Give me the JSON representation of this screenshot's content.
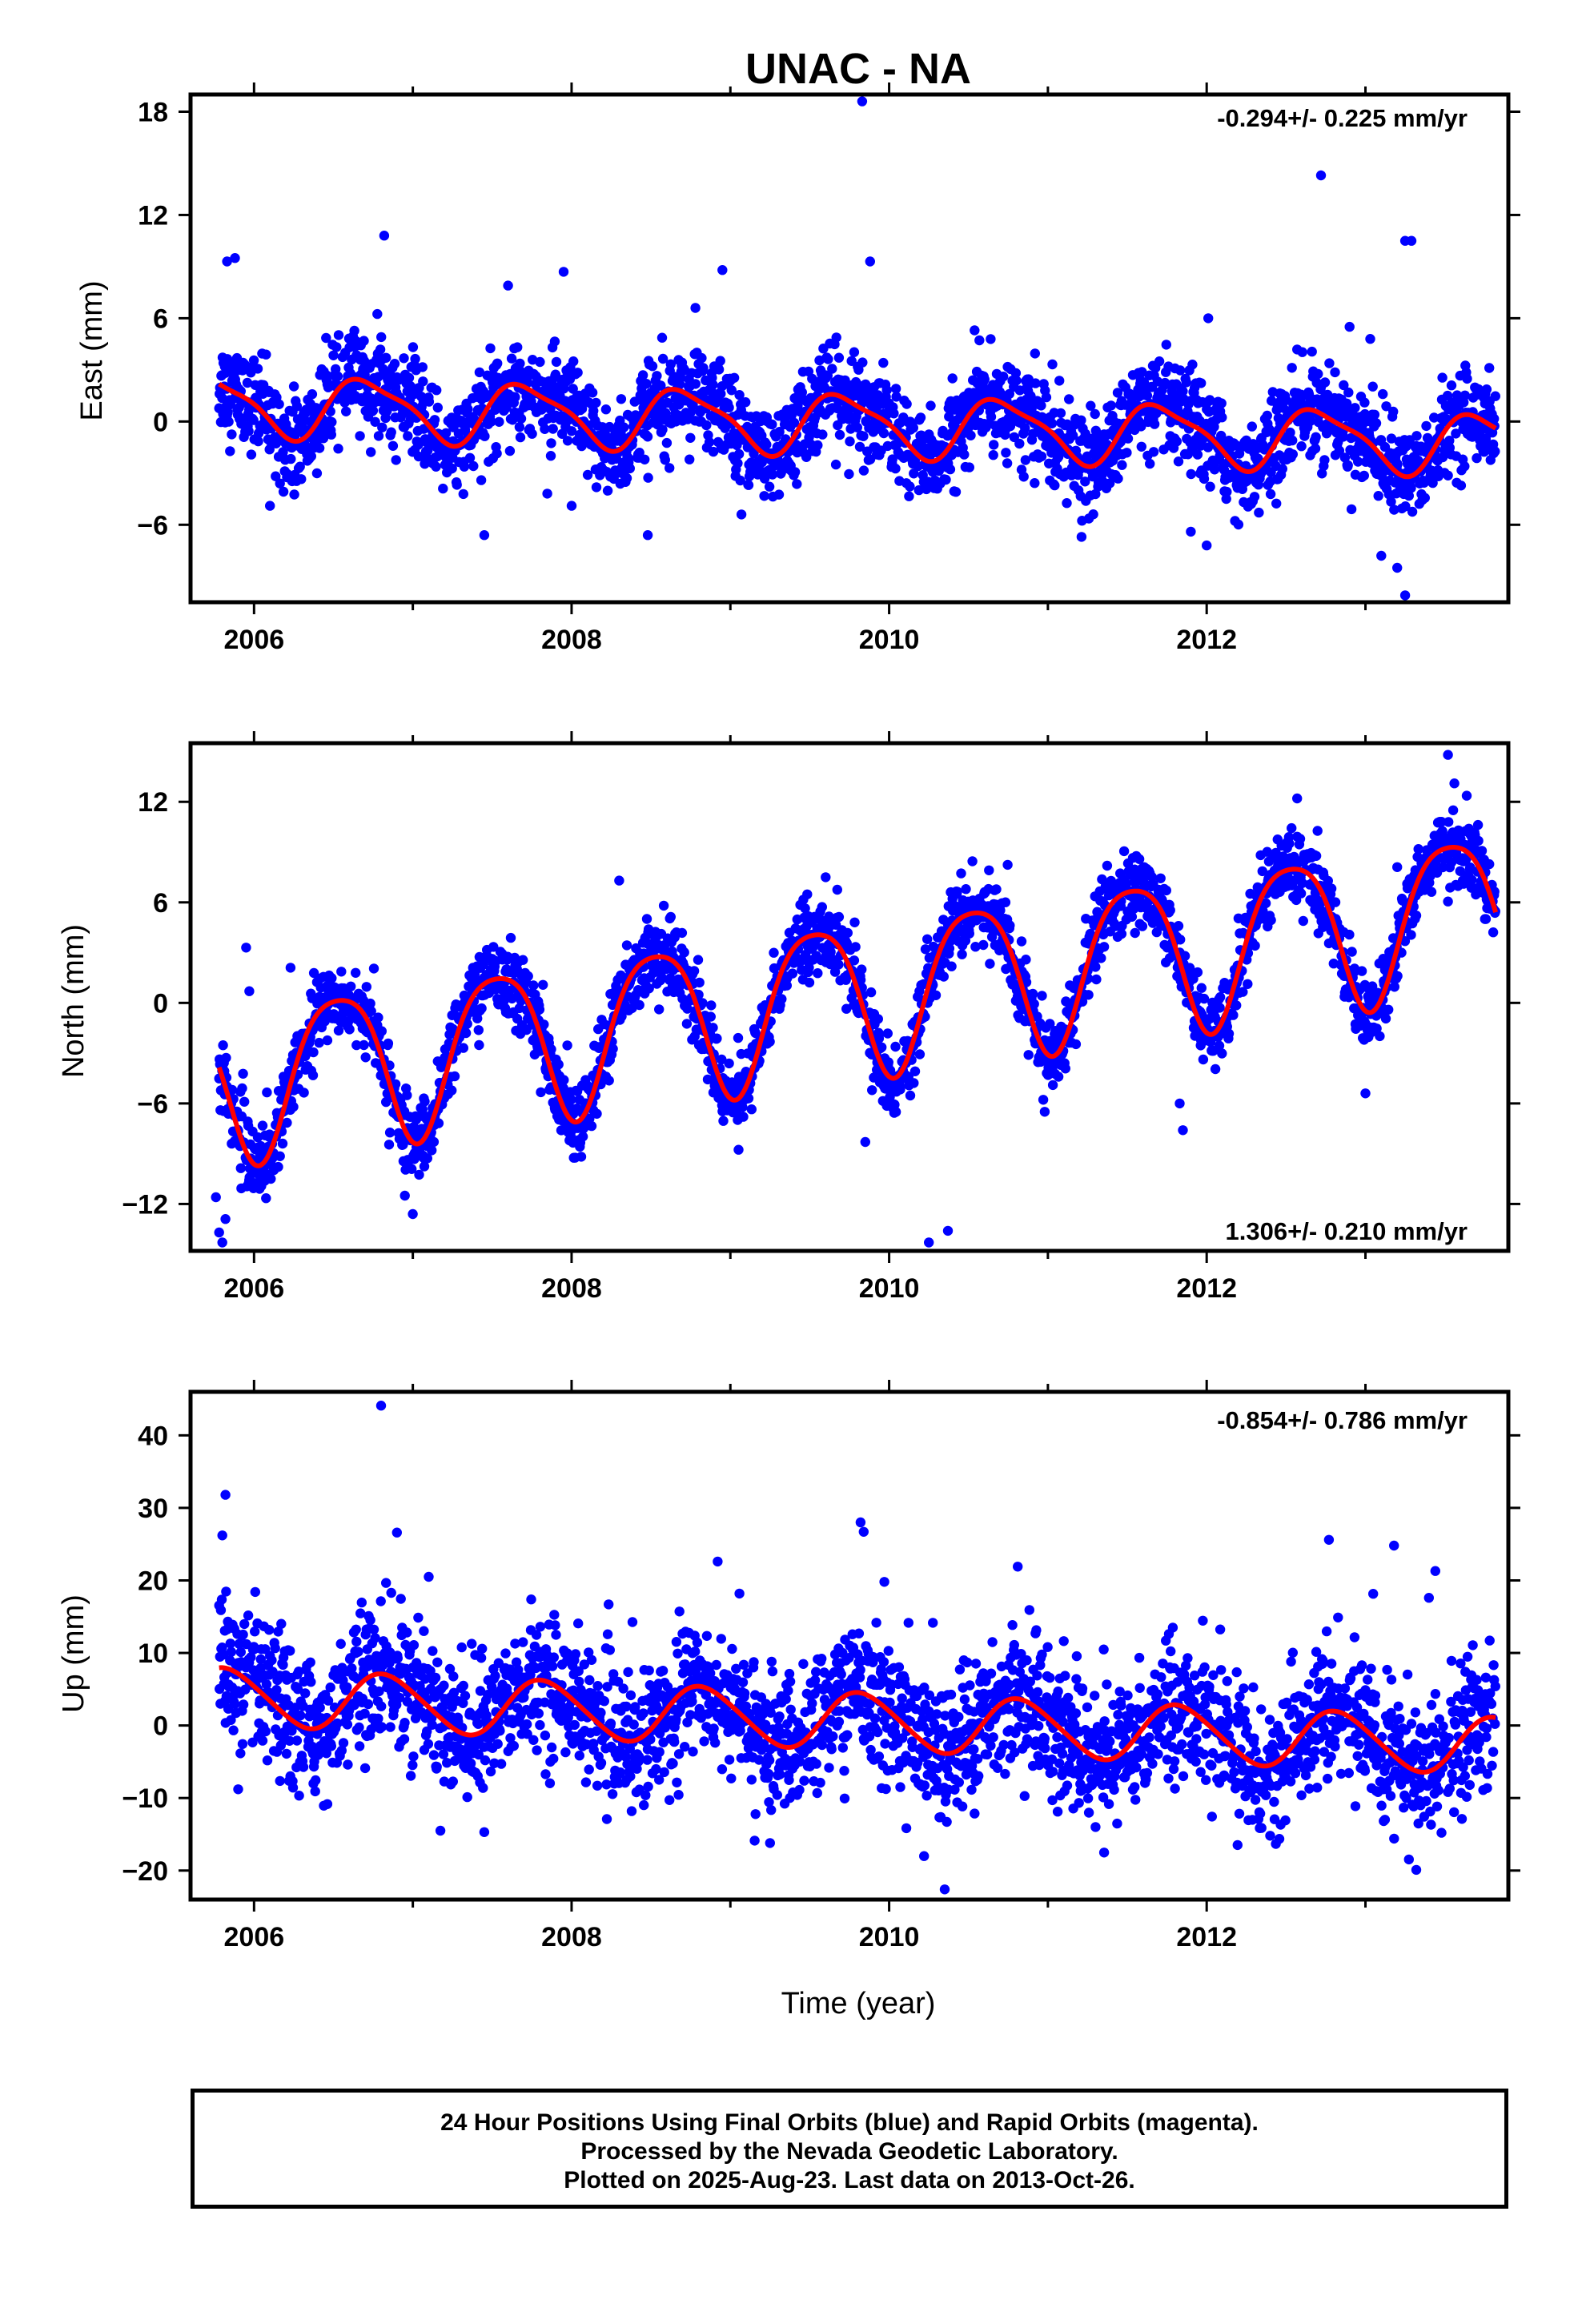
{
  "figure": {
    "title": "UNAC - NA",
    "xlabel": "Time (year)",
    "footer_lines": [
      "24 Hour Positions Using Final Orbits (blue) and Rapid Orbits (magenta).",
      "Processed by the Nevada Geodetic Laboratory.",
      "Plotted on 2025-Aug-23. Last data on 2013-Oct-26."
    ],
    "colors": {
      "points": "#0000ff",
      "fit": "#ff0000",
      "frame": "#000000"
    }
  },
  "chart_data": [
    {
      "type": "scatter",
      "name": "east",
      "ylabel": "East (mm)",
      "rate_text": "-0.294+/- 0.225 mm/yr",
      "rate_position": "top-right",
      "xlim": [
        2005.6,
        2013.9
      ],
      "ylim": [
        -10.5,
        19
      ],
      "xticks": [
        2006,
        2008,
        2010,
        2012
      ],
      "xtick_labels": [
        "2006",
        "2008",
        "2010",
        "2012"
      ],
      "yticks": [
        -6,
        0,
        6,
        12,
        18
      ],
      "ytick_labels": [
        "−6",
        "0",
        "6",
        "12",
        "18"
      ],
      "grid": false,
      "model": {
        "offset": -0.15,
        "rate": -0.294,
        "ref_year": 2009.8,
        "annual_amp": 1.7,
        "annual_phase_year": 0.72,
        "semiannual_amp": 0.45,
        "semiannual_phase_year": 0.05,
        "scatter_sd": 1.35
      },
      "outliers": [
        [
          2009.83,
          18.6
        ],
        [
          2012.72,
          14.3
        ],
        [
          2006.82,
          10.8
        ],
        [
          2013.25,
          10.5
        ],
        [
          2013.29,
          10.5
        ],
        [
          2005.88,
          9.5
        ],
        [
          2005.83,
          9.3
        ],
        [
          2009.88,
          9.3
        ],
        [
          2008.95,
          8.8
        ],
        [
          2007.95,
          8.7
        ],
        [
          2008.78,
          6.6
        ],
        [
          2012.01,
          6.0
        ],
        [
          2007.6,
          7.9
        ],
        [
          2012.9,
          5.5
        ],
        [
          2013.03,
          4.8
        ],
        [
          2007.45,
          -6.6
        ],
        [
          2008.48,
          -6.6
        ],
        [
          2012.0,
          -7.2
        ],
        [
          2013.1,
          -7.8
        ],
        [
          2013.2,
          -8.5
        ],
        [
          2013.25,
          -10.1
        ],
        [
          2006.1,
          -4.9
        ],
        [
          2011.9,
          -6.4
        ],
        [
          2008.0,
          -4.9
        ],
        [
          2009.07,
          -5.4
        ]
      ]
    },
    {
      "type": "scatter",
      "name": "north",
      "ylabel": "North (mm)",
      "rate_text": "1.306+/- 0.210 mm/yr",
      "rate_position": "bottom-right",
      "xlim": [
        2005.6,
        2013.9
      ],
      "ylim": [
        -14.8,
        15.5
      ],
      "xticks": [
        2006,
        2008,
        2010,
        2012
      ],
      "xtick_labels": [
        "2006",
        "2008",
        "2010",
        "2012"
      ],
      "yticks": [
        -12,
        -6,
        0,
        6,
        12
      ],
      "ytick_labels": [
        "−12",
        "−6",
        "0",
        "6",
        "12"
      ],
      "grid": false,
      "model": {
        "offset": 0.6,
        "rate": 1.306,
        "ref_year": 2009.8,
        "annual_amp": 4.6,
        "annual_phase_year": 0.53,
        "semiannual_amp": 0.8,
        "semiannual_phase_year": 0.28,
        "scatter_sd": 1.1
      },
      "outliers": [
        [
          2005.78,
          -13.7
        ],
        [
          2005.8,
          -14.3
        ],
        [
          2005.82,
          -12.9
        ],
        [
          2005.76,
          -11.6
        ],
        [
          2005.95,
          3.3
        ],
        [
          2005.97,
          0.7
        ],
        [
          2006.23,
          2.1
        ],
        [
          2007.0,
          -12.6
        ],
        [
          2006.95,
          -11.5
        ],
        [
          2008.3,
          7.3
        ],
        [
          2009.85,
          -8.3
        ],
        [
          2010.25,
          -14.3
        ],
        [
          2010.37,
          -13.6
        ],
        [
          2010.98,
          -6.5
        ],
        [
          2011.83,
          -6.0
        ],
        [
          2011.85,
          -7.6
        ],
        [
          2013.0,
          -5.4
        ],
        [
          2012.57,
          12.2
        ],
        [
          2013.2,
          8.1
        ],
        [
          2013.52,
          14.8
        ],
        [
          2013.56,
          13.1
        ],
        [
          2009.6,
          7.5
        ]
      ]
    },
    {
      "type": "scatter",
      "name": "up",
      "ylabel": "Up (mm)",
      "rate_text": "-0.854+/- 0.786 mm/yr",
      "rate_position": "top-right",
      "xlim": [
        2005.6,
        2013.9
      ],
      "ylim": [
        -24,
        46
      ],
      "xticks": [
        2006,
        2008,
        2010,
        2012
      ],
      "xtick_labels": [
        "2006",
        "2008",
        "2010",
        "2012"
      ],
      "yticks": [
        -20,
        -10,
        0,
        10,
        20,
        30,
        40
      ],
      "ytick_labels": [
        "−20",
        "−10",
        "0",
        "10",
        "20",
        "30",
        "40"
      ],
      "grid": false,
      "model": {
        "offset": 0.6,
        "rate": -0.854,
        "ref_year": 2009.8,
        "annual_amp": 3.9,
        "annual_phase_year": 0.83,
        "semiannual_amp": 0.4,
        "semiannual_phase_year": 0.2,
        "scatter_sd": 4.6
      },
      "outliers": [
        [
          2006.8,
          44.1
        ],
        [
          2005.82,
          31.8
        ],
        [
          2005.8,
          26.2
        ],
        [
          2006.9,
          26.6
        ],
        [
          2009.82,
          28.0
        ],
        [
          2009.84,
          26.7
        ],
        [
          2012.77,
          25.6
        ],
        [
          2013.18,
          24.8
        ],
        [
          2008.92,
          22.6
        ],
        [
          2010.81,
          21.9
        ],
        [
          2013.44,
          21.3
        ],
        [
          2009.97,
          19.8
        ],
        [
          2007.1,
          20.5
        ],
        [
          2013.4,
          17.6
        ],
        [
          2010.35,
          -22.6
        ],
        [
          2013.32,
          -19.9
        ],
        [
          2010.22,
          -18.0
        ],
        [
          2009.25,
          -16.2
        ],
        [
          2007.45,
          -14.7
        ],
        [
          2011.3,
          -14.0
        ],
        [
          2012.4,
          -15.2
        ],
        [
          2005.9,
          -8.8
        ]
      ]
    }
  ]
}
